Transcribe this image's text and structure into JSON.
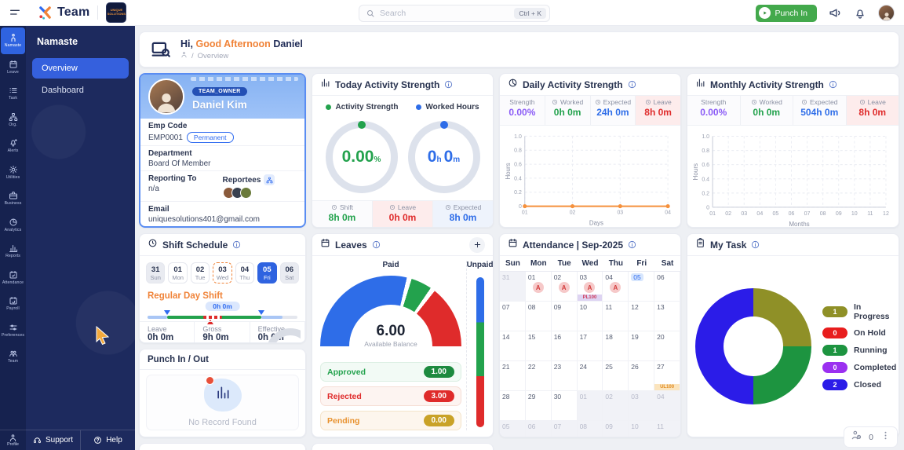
{
  "topbar": {
    "brand": "Team",
    "company_badge": "UNIQUE SOLUTIONS",
    "search": {
      "placeholder": "Search",
      "shortcut": "Ctrl + K"
    },
    "punch_in_label": "Punch In"
  },
  "icon_rail": {
    "items": [
      {
        "label": "Namaste",
        "icon": "namaste",
        "active": true
      },
      {
        "label": "Leave",
        "icon": "leave",
        "active": false
      },
      {
        "label": "Task",
        "icon": "task",
        "active": false
      },
      {
        "label": "Org.",
        "icon": "org",
        "active": false
      },
      {
        "label": "Alerts",
        "icon": "alerts",
        "active": false
      },
      {
        "label": "Utilities",
        "icon": "utilities",
        "active": false
      },
      {
        "label": "Business",
        "icon": "business",
        "active": false
      },
      {
        "label": "Analytics",
        "icon": "analytics",
        "active": false
      },
      {
        "label": "Reports",
        "icon": "reports",
        "active": false
      },
      {
        "label": "Attendance",
        "icon": "attendance",
        "active": false
      },
      {
        "label": "Payroll",
        "icon": "payroll",
        "active": false
      },
      {
        "label": "Preferences",
        "icon": "preferences",
        "active": false
      },
      {
        "label": "Team",
        "icon": "team",
        "active": false
      }
    ],
    "bottom": {
      "label": "Profile",
      "icon": "profile"
    }
  },
  "sidebar": {
    "title": "Namaste",
    "items": [
      {
        "label": "Overview",
        "active": true
      },
      {
        "label": "Dashboard",
        "active": false
      }
    ],
    "footer": [
      {
        "label": "Support",
        "icon": "support"
      },
      {
        "label": "Help",
        "icon": "help"
      }
    ]
  },
  "greeting": {
    "prefix": "Hi,",
    "highlight": "Good Afternoon",
    "name": "Daniel",
    "breadcrumb_sep": "/",
    "breadcrumb": "Overview"
  },
  "profile_card": {
    "role_badge": "TEAM_OWNER",
    "name": "Daniel Kim",
    "fields": {
      "emp_code_label": "Emp Code",
      "emp_code": "EMP0001",
      "emp_type": "Permanent",
      "department_label": "Department",
      "department": "Board Of Member",
      "reporting_label": "Reporting To",
      "reporting_value": "n/a",
      "reportees_label": "Reportees",
      "email_label": "Email",
      "email": "uniquesolutions401@gmail.com"
    }
  },
  "today_activity": {
    "title": "Today Activity Strength",
    "legend": [
      {
        "label": "Activity Strength",
        "color": "#23a24d"
      },
      {
        "label": "Worked Hours",
        "color": "#2e6de8"
      }
    ],
    "activity": {
      "value": "0.00",
      "unit": "%"
    },
    "worked": {
      "value": "0h 0m"
    },
    "footer": [
      {
        "label": "Shift",
        "value": "8h 0m",
        "tone": "green",
        "bg": "plain"
      },
      {
        "label": "Leave",
        "value": "0h 0m",
        "tone": "red",
        "bg": "red"
      },
      {
        "label": "Expected",
        "value": "8h 0m",
        "tone": "blue",
        "bg": "blue"
      }
    ]
  },
  "daily_activity": {
    "title": "Daily Activity Strength",
    "stats": [
      {
        "label": "Strength",
        "value": "0.00%",
        "tone": "purple",
        "clock": false,
        "bg": "plain"
      },
      {
        "label": "Worked",
        "value": "0h 0m",
        "tone": "green",
        "clock": true,
        "bg": "plain"
      },
      {
        "label": "Expected",
        "value": "24h 0m",
        "tone": "blue",
        "clock": true,
        "bg": "plain"
      },
      {
        "label": "Leave",
        "value": "8h 0m",
        "tone": "red",
        "clock": true,
        "bg": "red"
      }
    ]
  },
  "monthly_activity": {
    "title": "Monthly Activity Strength",
    "stats": [
      {
        "label": "Strength",
        "value": "0.00%",
        "tone": "purple",
        "clock": false,
        "bg": "plain"
      },
      {
        "label": "Worked",
        "value": "0h 0m",
        "tone": "green",
        "clock": true,
        "bg": "plain"
      },
      {
        "label": "Expected",
        "value": "504h 0m",
        "tone": "blue",
        "clock": true,
        "bg": "plain"
      },
      {
        "label": "Leave",
        "value": "8h 0m",
        "tone": "red",
        "clock": true,
        "bg": "red"
      }
    ]
  },
  "shift_schedule": {
    "title": "Shift Schedule",
    "days": [
      {
        "num": "31",
        "name": "Sun",
        "state": "muted"
      },
      {
        "num": "01",
        "name": "Mon",
        "state": "default"
      },
      {
        "num": "02",
        "name": "Tue",
        "state": "default"
      },
      {
        "num": "03",
        "name": "Wed",
        "state": "dashed"
      },
      {
        "num": "04",
        "name": "Thu",
        "state": "default"
      },
      {
        "num": "05",
        "name": "Fri",
        "state": "selected"
      },
      {
        "num": "06",
        "name": "Sat",
        "state": "muted"
      }
    ],
    "shift_name": "Regular Day Shift",
    "duration_label": "0h 0m",
    "stats": [
      {
        "label": "Leave",
        "value": "0h 0m"
      },
      {
        "label": "Gross",
        "value": "9h 0m"
      },
      {
        "label": "Effective",
        "value": "0h 0m"
      }
    ]
  },
  "punch_card": {
    "title": "Punch In / Out",
    "empty": "No Record Found"
  },
  "leaves": {
    "title": "Leaves",
    "paid_label": "Paid",
    "unpaid_label": "Unpaid",
    "rows": [
      {
        "label": "Approved",
        "value": "1.00",
        "tone": "green",
        "badge_color": "#1d8a3f"
      },
      {
        "label": "Rejected",
        "value": "3.00",
        "tone": "red",
        "badge_color": "#df2b2b"
      },
      {
        "label": "Pending",
        "value": "0.00",
        "tone": "amber",
        "badge_color": "#c9a227"
      }
    ]
  },
  "attendance": {
    "title": "Attendance | Sep-2025",
    "weekdays": [
      "Sun",
      "Mon",
      "Tue",
      "Wed",
      "Thu",
      "Fri",
      "Sat"
    ],
    "weeks": [
      [
        {
          "d": "31",
          "muted": true
        },
        {
          "d": "01",
          "badge": "A"
        },
        {
          "d": "02",
          "badge": "A"
        },
        {
          "d": "03",
          "badge": "A",
          "tag": "PL100",
          "tag_type": "pl"
        },
        {
          "d": "04",
          "badge": "A"
        },
        {
          "d": "05",
          "today": true
        },
        {
          "d": "06"
        }
      ],
      [
        {
          "d": "07"
        },
        {
          "d": "08"
        },
        {
          "d": "09"
        },
        {
          "d": "10"
        },
        {
          "d": "11"
        },
        {
          "d": "12"
        },
        {
          "d": "13"
        }
      ],
      [
        {
          "d": "14"
        },
        {
          "d": "15"
        },
        {
          "d": "16"
        },
        {
          "d": "17"
        },
        {
          "d": "18"
        },
        {
          "d": "19"
        },
        {
          "d": "20"
        }
      ],
      [
        {
          "d": "21"
        },
        {
          "d": "22"
        },
        {
          "d": "23"
        },
        {
          "d": "24"
        },
        {
          "d": "25"
        },
        {
          "d": "26"
        },
        {
          "d": "27",
          "tag": "UL100",
          "tag_type": "ul"
        }
      ],
      [
        {
          "d": "28"
        },
        {
          "d": "29"
        },
        {
          "d": "30"
        },
        {
          "d": "01",
          "muted": true
        },
        {
          "d": "02",
          "muted": true
        },
        {
          "d": "03",
          "muted": true
        },
        {
          "d": "04",
          "muted": true
        }
      ],
      [
        {
          "d": "05",
          "muted": true
        },
        {
          "d": "06",
          "muted": true
        },
        {
          "d": "07",
          "muted": true
        },
        {
          "d": "08",
          "muted": true
        },
        {
          "d": "09",
          "muted": true
        },
        {
          "d": "10",
          "muted": true
        },
        {
          "d": "11",
          "muted": true
        }
      ]
    ]
  },
  "my_task": {
    "title": "My Task",
    "footer_count": "0"
  },
  "chart_data": [
    {
      "type": "line",
      "title": "Daily Activity Strength",
      "x": [
        "01",
        "02",
        "03",
        "04"
      ],
      "series": [
        {
          "name": "Worked Hours",
          "color": "#f5913d",
          "values": [
            0,
            0,
            0,
            0
          ]
        }
      ],
      "xlabel": "Days",
      "ylabel": "Hours",
      "ylim": [
        0,
        1
      ],
      "yticks": [
        0,
        0.2,
        0.4,
        0.6,
        0.8,
        1
      ],
      "grid": true,
      "legend": false
    },
    {
      "type": "line",
      "title": "Monthly Activity Strength",
      "x": [
        "01",
        "02",
        "03",
        "04",
        "05",
        "06",
        "07",
        "08",
        "09",
        "10",
        "11",
        "12"
      ],
      "series": [],
      "xlabel": "Months",
      "ylabel": "Hours",
      "ylim": [
        0,
        1
      ],
      "yticks": [
        0,
        0.2,
        0.4,
        0.6,
        0.8,
        1
      ],
      "grid": true,
      "legend": false
    },
    {
      "type": "gauge",
      "title": "Leaves Paid Balance",
      "center_value": "6.00",
      "center_label": "Available Balance",
      "segments": [
        {
          "label": "Available",
          "value": 6,
          "color": "#2e6de8"
        },
        {
          "label": "Approved",
          "value": 1,
          "color": "#23a24d"
        },
        {
          "label": "Rejected",
          "value": 3,
          "color": "#df2b2b"
        }
      ]
    },
    {
      "type": "bar",
      "title": "Leaves Unpaid",
      "segments": [
        {
          "value": 30,
          "color": "#2e6de8"
        },
        {
          "value": 36,
          "color": "#23a24d"
        },
        {
          "value": 34,
          "color": "#df2b2b"
        }
      ]
    },
    {
      "type": "pie",
      "title": "My Task",
      "donut": true,
      "segments": [
        {
          "label": "In Progress",
          "value": 1,
          "color": "#8f9027"
        },
        {
          "label": "On Hold",
          "value": 0,
          "color": "#e81d1d"
        },
        {
          "label": "Running",
          "value": 1,
          "color": "#1d9440"
        },
        {
          "label": "Completed",
          "value": 0,
          "color": "#9b30f0"
        },
        {
          "label": "Closed",
          "value": 2,
          "color": "#2b1ce8"
        }
      ]
    }
  ]
}
